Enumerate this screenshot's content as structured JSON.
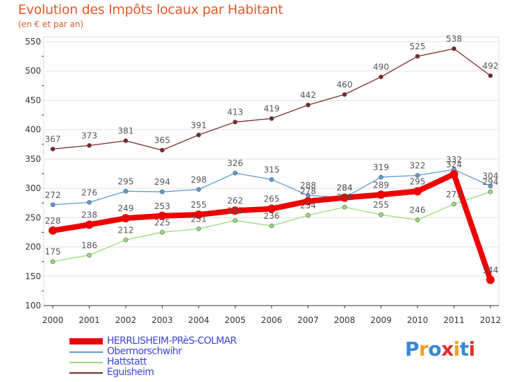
{
  "chart_data": {
    "type": "line",
    "title": "Evolution des Impôts locaux par Habitant",
    "subtitle": "(en € et par an)",
    "x": [
      "2000",
      "2001",
      "2002",
      "2003",
      "2004",
      "2005",
      "2006",
      "2007",
      "2008",
      "2009",
      "2010",
      "2011",
      "2012"
    ],
    "ylim": [
      100,
      550
    ],
    "yticks": [
      100,
      150,
      200,
      250,
      300,
      350,
      400,
      450,
      500,
      550
    ],
    "grid": "horizontal",
    "legend_position": "bottom-left",
    "series": [
      {
        "name": "HERRLISHEIM-PRèS-COLMAR",
        "color": "#ee0000",
        "values": [
          228,
          238,
          249,
          253,
          255,
          262,
          265,
          278,
          284,
          289,
          295,
          324,
          144
        ],
        "labels": [
          "228",
          "238",
          "249",
          "253",
          "255",
          "262",
          "265",
          "278",
          "284",
          "289",
          "295",
          "324",
          "144"
        ]
      },
      {
        "name": "Obermorschwihr",
        "color": "#5b9bd5",
        "values": [
          272,
          276,
          295,
          294,
          298,
          326,
          315,
          288,
          284,
          319,
          322,
          332,
          304
        ],
        "labels": [
          "272",
          "276",
          "295",
          "294",
          "298",
          "326",
          "315",
          "288",
          "284",
          "319",
          "322",
          "332",
          "304"
        ]
      },
      {
        "name": "Hattstatt",
        "color": "#99dd77",
        "values": [
          175,
          186,
          212,
          225,
          231,
          245,
          236,
          254,
          268,
          255,
          246,
          273,
          294
        ],
        "labels": [
          "175",
          "186",
          "212",
          "225",
          "231",
          "245",
          "236",
          "254",
          "268",
          "255",
          "246",
          "273",
          "294"
        ]
      },
      {
        "name": "Eguisheim",
        "color": "#7a2828",
        "values": [
          367,
          373,
          381,
          365,
          391,
          413,
          419,
          442,
          460,
          490,
          525,
          538,
          492
        ],
        "labels": [
          "367",
          "373",
          "381",
          "365",
          "391",
          "413",
          "419",
          "442",
          "460",
          "490",
          "525",
          "538",
          "492"
        ]
      }
    ]
  },
  "brand": {
    "letters": [
      "P",
      "r",
      "o",
      "x",
      "i",
      "t",
      "i"
    ],
    "colors": [
      "#3a86d4",
      "#f0a020",
      "#3a86d4",
      "#e0302a",
      "#f0a020",
      "#3a86d4",
      "#e0302a"
    ]
  }
}
